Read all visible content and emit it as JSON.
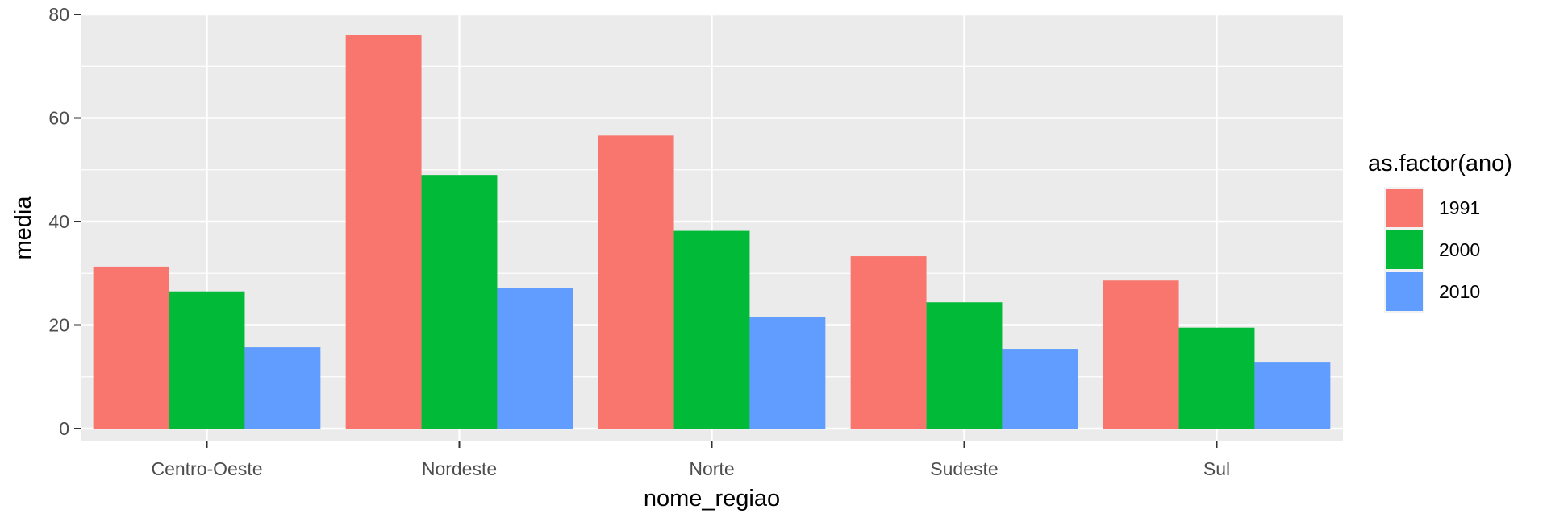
{
  "chart_data": {
    "type": "bar",
    "xlabel": "nome_regiao",
    "ylabel": "media",
    "ylim": [
      0,
      80
    ],
    "yticks": [
      0,
      20,
      40,
      60,
      80
    ],
    "grid": true,
    "legend": {
      "title": "as.factor(ano)",
      "position": "right"
    },
    "categories": [
      "Centro-Oeste",
      "Nordeste",
      "Norte",
      "Sudeste",
      "Sul"
    ],
    "series": [
      {
        "name": "1991",
        "color": "#F8766D",
        "values": [
          31.3,
          76.1,
          56.6,
          33.3,
          28.6
        ]
      },
      {
        "name": "2000",
        "color": "#00BA38",
        "values": [
          26.5,
          49.0,
          38.2,
          24.4,
          19.5
        ]
      },
      {
        "name": "2010",
        "color": "#619CFF",
        "values": [
          15.7,
          27.1,
          21.5,
          15.4,
          12.9
        ]
      }
    ]
  }
}
